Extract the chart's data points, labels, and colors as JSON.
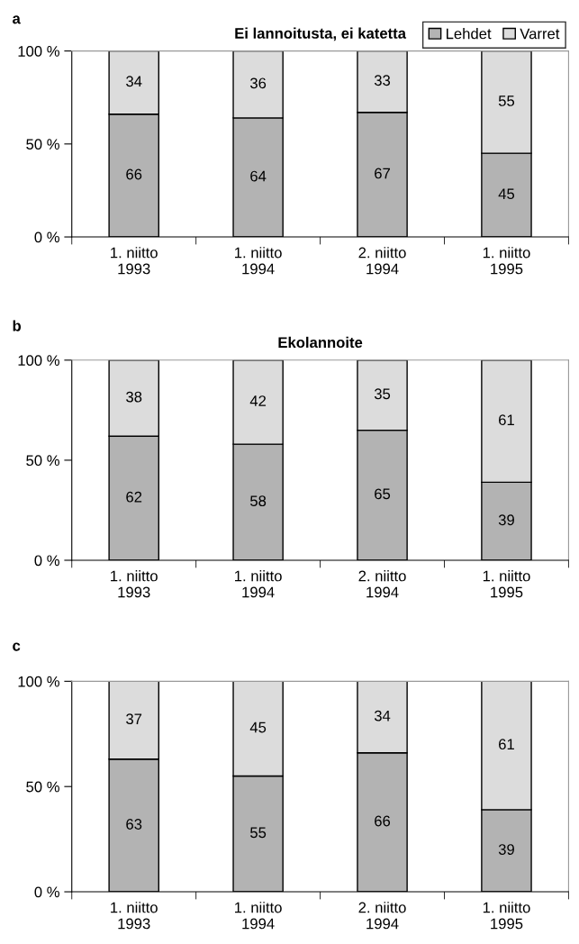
{
  "chart_data": [
    {
      "type": "bar",
      "stacked": true,
      "title": "Ei lannoitusta, ei katetta",
      "annotations": [
        "a"
      ],
      "categories": [
        "1. niitto\n1993",
        "1. niitto\n1994",
        "2. niitto\n1994",
        "1. niitto\n1995"
      ],
      "series": [
        {
          "name": "Lehdet",
          "color": "#b3b3b3",
          "values": [
            66,
            64,
            67,
            45
          ]
        },
        {
          "name": "Varret",
          "color": "#dcdcdc",
          "values": [
            34,
            36,
            33,
            55
          ]
        }
      ],
      "ylim": [
        0,
        100
      ],
      "yticks": [
        {
          "value": 0,
          "label": "0 %"
        },
        {
          "value": 50,
          "label": "50 %"
        },
        {
          "value": 100,
          "label": "100 %"
        }
      ],
      "data_labels": true,
      "legend": "top right"
    },
    {
      "type": "bar",
      "stacked": true,
      "title": "Ekolannoite",
      "annotations": [
        "b"
      ],
      "categories": [
        "1. niitto\n1993",
        "1. niitto\n1994",
        "2. niitto\n1994",
        "1. niitto\n1995"
      ],
      "series": [
        {
          "color": "#b3b3b3",
          "values": [
            62,
            58,
            65,
            39
          ]
        },
        {
          "color": "#dcdcdc",
          "values": [
            38,
            42,
            35,
            61
          ]
        }
      ],
      "ylim": [
        0,
        100
      ],
      "yticks": [
        {
          "value": 0,
          "label": "0 %"
        },
        {
          "value": 50,
          "label": "50 %"
        },
        {
          "value": 100,
          "label": "100 %"
        }
      ],
      "data_labels": true
    },
    {
      "type": "bar",
      "stacked": true,
      "annotations": [
        "c"
      ],
      "categories": [
        "1. niitto\n1993",
        "1. niitto\n1994",
        "2. niitto\n1994",
        "1. niitto\n1995"
      ],
      "series": [
        {
          "color": "#b3b3b3",
          "values": [
            63,
            55,
            66,
            39
          ]
        },
        {
          "color": "#dcdcdc",
          "values": [
            37,
            45,
            34,
            61
          ]
        }
      ],
      "ylim": [
        0,
        100
      ],
      "yticks": [
        {
          "value": 0,
          "label": "0 %"
        },
        {
          "value": 50,
          "label": "50 %"
        },
        {
          "value": 100,
          "label": "100 %"
        }
      ],
      "data_labels": true
    }
  ]
}
